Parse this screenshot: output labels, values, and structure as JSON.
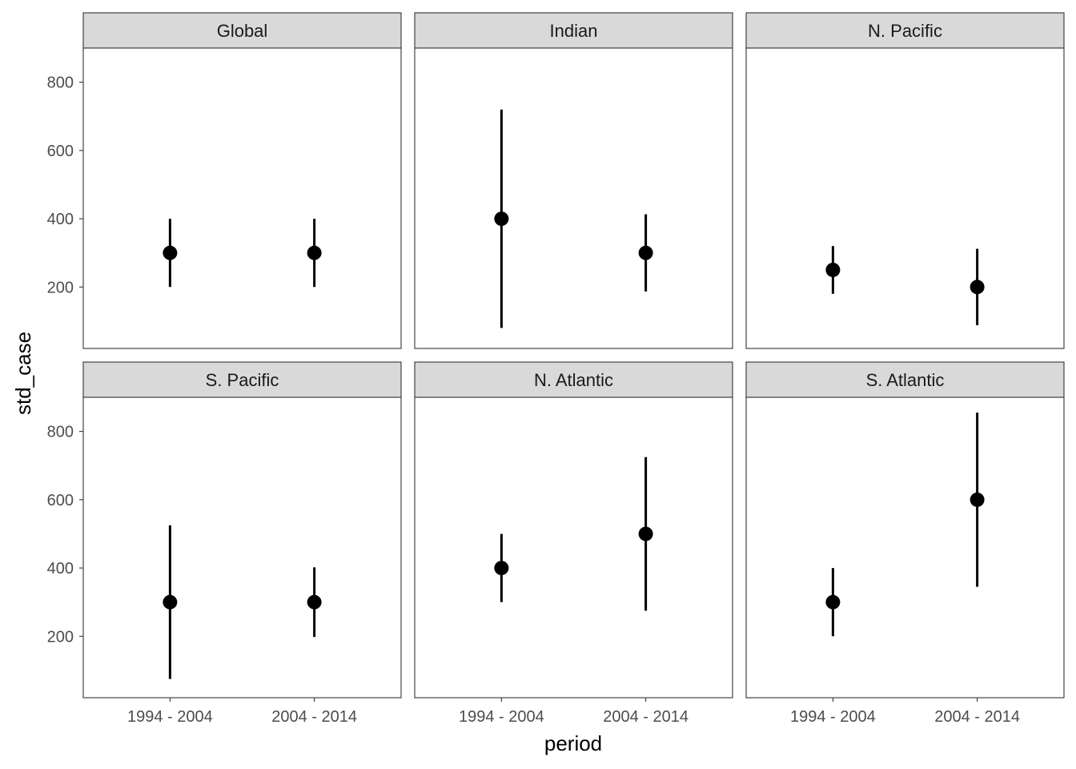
{
  "chart_data": {
    "type": "pointrange",
    "xlabel": "period",
    "ylabel": "std_case",
    "categories": [
      "1994 - 2004",
      "2004 - 2014"
    ],
    "y_ticks": [
      "200",
      "400",
      "600",
      "800"
    ],
    "ylim": [
      20,
      900
    ],
    "grid": false,
    "facets": [
      {
        "label": "Global",
        "points": [
          {
            "x": "1994 - 2004",
            "y": 300,
            "ymin": 200,
            "ymax": 400
          },
          {
            "x": "2004 - 2014",
            "y": 300,
            "ymin": 200,
            "ymax": 400
          }
        ]
      },
      {
        "label": "Indian",
        "points": [
          {
            "x": "1994 - 2004",
            "y": 400,
            "ymin": 80,
            "ymax": 720
          },
          {
            "x": "2004 - 2014",
            "y": 300,
            "ymin": 187,
            "ymax": 413
          }
        ]
      },
      {
        "label": "N. Pacific",
        "points": [
          {
            "x": "1994 - 2004",
            "y": 250,
            "ymin": 180,
            "ymax": 320
          },
          {
            "x": "2004 - 2014",
            "y": 200,
            "ymin": 88,
            "ymax": 312
          }
        ]
      },
      {
        "label": "S. Pacific",
        "points": [
          {
            "x": "1994 - 2004",
            "y": 300,
            "ymin": 75,
            "ymax": 525
          },
          {
            "x": "2004 - 2014",
            "y": 300,
            "ymin": 198,
            "ymax": 402
          }
        ]
      },
      {
        "label": "N. Atlantic",
        "points": [
          {
            "x": "1994 - 2004",
            "y": 400,
            "ymin": 300,
            "ymax": 500
          },
          {
            "x": "2004 - 2014",
            "y": 500,
            "ymin": 275,
            "ymax": 725
          }
        ]
      },
      {
        "label": "S. Atlantic",
        "points": [
          {
            "x": "1994 - 2004",
            "y": 300,
            "ymin": 200,
            "ymax": 400
          },
          {
            "x": "2004 - 2014",
            "y": 600,
            "ymin": 345,
            "ymax": 855
          }
        ]
      }
    ]
  }
}
